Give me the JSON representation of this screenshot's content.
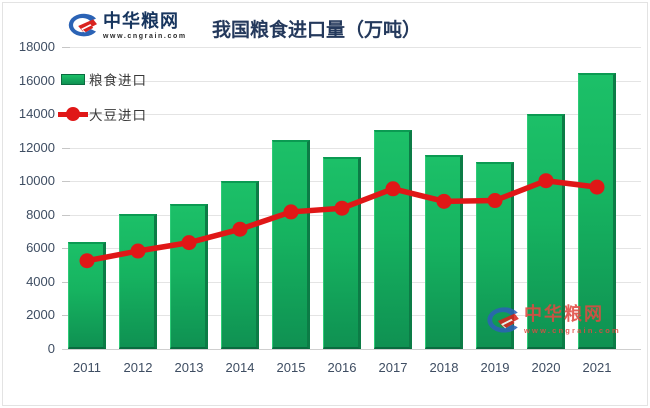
{
  "page": {
    "background": "#ffffff",
    "frame_border": "#e3e3e3"
  },
  "header": {
    "logo": {
      "name": "中华粮网",
      "url": "www.cngrain.com",
      "icon_blue": "#2b63b5",
      "icon_red": "#d9231f",
      "text_color": "#17355e"
    },
    "title": "我国粮食进口量（万吨）",
    "title_color": "#24395c"
  },
  "legend": {
    "position": "top-left",
    "items": [
      {
        "label": "粮食进口",
        "marker": "bar",
        "color": "#12a35b"
      },
      {
        "label": "大豆进口",
        "marker": "line-dot",
        "color": "#e01717"
      }
    ]
  },
  "watermark": {
    "name": "中华粮网",
    "url": "www.cngrain.com",
    "color": "#e14a42"
  },
  "chart_data": {
    "type": "bar",
    "title": "我国粮食进口量（万吨）",
    "categories": [
      "2011",
      "2012",
      "2013",
      "2014",
      "2015",
      "2016",
      "2017",
      "2018",
      "2019",
      "2020",
      "2021"
    ],
    "series": [
      {
        "name": "粮食进口",
        "type": "bar",
        "color": "#15b460",
        "values": [
          6390,
          8025,
          8645,
          10040,
          12480,
          11470,
          13060,
          11560,
          11140,
          14000,
          16450
        ]
      },
      {
        "name": "大豆进口",
        "type": "line",
        "color": "#e01717",
        "values": [
          5260,
          5840,
          6340,
          7140,
          8170,
          8390,
          9550,
          8800,
          8850,
          10030,
          9650
        ]
      }
    ],
    "xlabel": "",
    "ylabel": "",
    "ylim": [
      0,
      18000
    ],
    "ytick_step": 2000,
    "grid": true,
    "gridline_color": "#e4e4e4",
    "legend_position": "top-left"
  }
}
